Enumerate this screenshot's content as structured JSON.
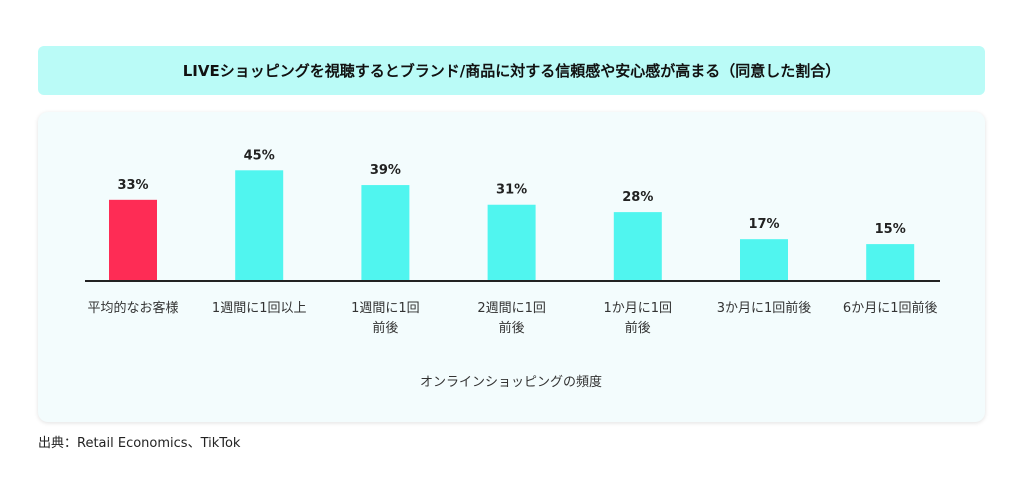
{
  "source": "出典：Retail Economics、TikTok",
  "chart_data": {
    "type": "bar",
    "title": "LIVEショッピングを視聴するとブランド/商品に対する信頼感や安心感が高まる（同意した割合）",
    "xlabel": "オンラインショッピングの頻度",
    "ylabel": "",
    "categories": [
      [
        "平均的なお客様"
      ],
      [
        "1週間に1回以上"
      ],
      [
        "1週間に1回",
        "前後"
      ],
      [
        "2週間に1回",
        "前後"
      ],
      [
        "1か月に1回",
        "前後"
      ],
      [
        "3か月に1回前後"
      ],
      [
        "6か月に1回前後"
      ]
    ],
    "values": [
      33,
      45,
      39,
      31,
      28,
      17,
      15
    ],
    "value_labels": [
      "33%",
      "45%",
      "39%",
      "31%",
      "28%",
      "17%",
      "15%"
    ],
    "colors": [
      "#fe2c55",
      "#50f5ef",
      "#50f5ef",
      "#50f5ef",
      "#50f5ef",
      "#50f5ef",
      "#50f5ef"
    ],
    "ylim": [
      0,
      50
    ],
    "grid": false
  }
}
